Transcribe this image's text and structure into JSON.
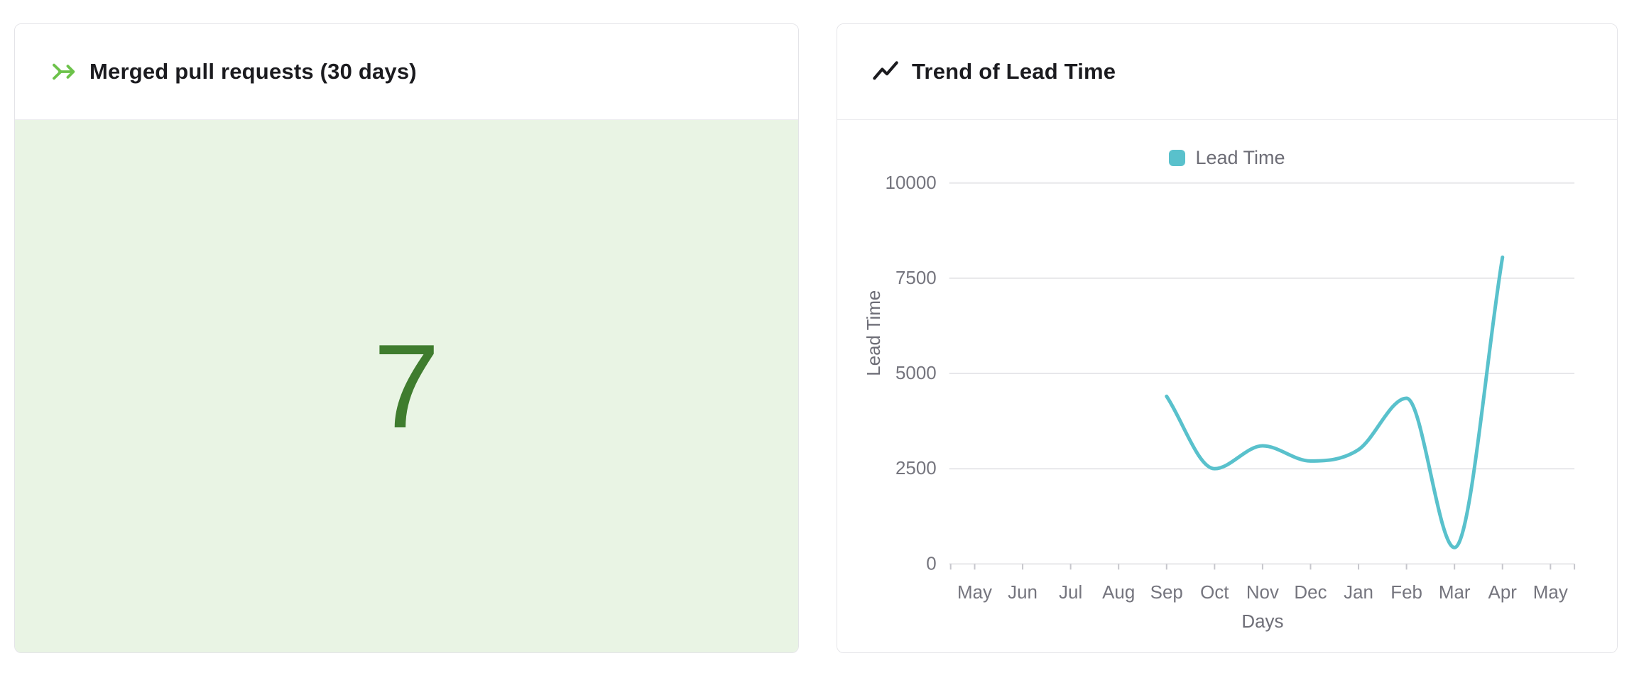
{
  "page": {
    "background": "#ffffff"
  },
  "left_card": {
    "title": "Merged pull requests (30 days)",
    "value": "7",
    "icon": "merged-arrow-icon",
    "icon_color": "#6cc24a",
    "value_color": "#3f7c2e",
    "body_background": "#e9f4e4"
  },
  "right_card": {
    "title": "Trend of Lead Time",
    "icon": "trend-line-icon",
    "icon_color": "#1b1b1f"
  },
  "chart_data": {
    "type": "line",
    "title": "Trend of Lead Time",
    "xlabel": "Days",
    "ylabel": "Lead Time",
    "categories": [
      "May",
      "Jun",
      "Jul",
      "Aug",
      "Sep",
      "Oct",
      "Nov",
      "Dec",
      "Jan",
      "Feb",
      "Mar",
      "Apr",
      "May"
    ],
    "series": [
      {
        "name": "Lead Time",
        "color": "#59c1cc",
        "values": [
          null,
          null,
          null,
          null,
          4400,
          2500,
          3100,
          2700,
          3000,
          4350,
          430,
          8050,
          null
        ]
      }
    ],
    "ylim": [
      0,
      10000
    ],
    "yticks": [
      0,
      2500,
      5000,
      7500,
      10000
    ],
    "grid": "horizontal-only",
    "smooth": "monotone",
    "legend": {
      "label": "Lead Time",
      "swatch_color": "#59c1cc",
      "position": "top-center"
    },
    "colors": {
      "gridline": "#e7e7ea",
      "tick": "#c6c6cc",
      "axis_label": "#75757e",
      "axis_title": "#6e6e77"
    }
  }
}
